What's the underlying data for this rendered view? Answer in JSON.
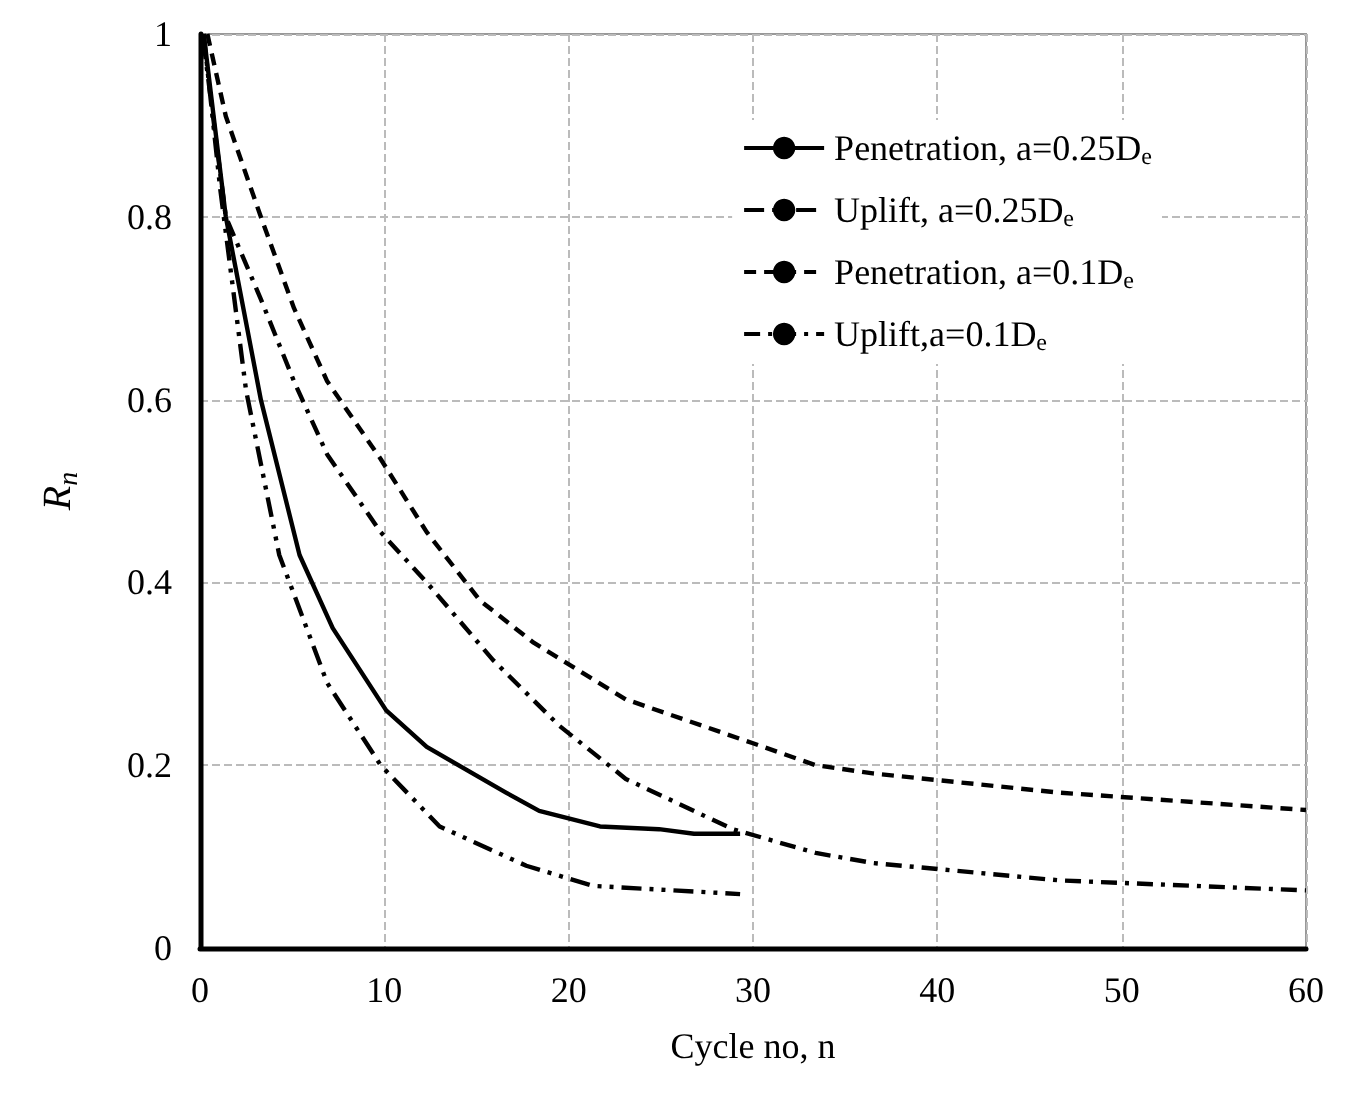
{
  "chart_data": {
    "type": "line",
    "xlabel": "Cycle no, n",
    "ylabel": "R$_{n}$",
    "xlim": [
      0,
      60
    ],
    "xticks": [
      0,
      10,
      20,
      30,
      40,
      50,
      60
    ],
    "ylim": [
      0,
      1
    ],
    "yticks": [
      0,
      0.2,
      0.4,
      0.6,
      0.8,
      1
    ],
    "grid": true,
    "legend": "top right",
    "marker": "none",
    "series": [
      {
        "name": "Penetration, a=0.25D$_{e}$",
        "color": "#000000",
        "line_style": "solid",
        "x": [
          0.2,
          1.4,
          3.3,
          5.4,
          7.2,
          10.1,
          12.3,
          16.6,
          18.4,
          21.7,
          24.9,
          26.8,
          29.3
        ],
        "values": [
          1,
          0.8,
          0.6,
          0.43,
          0.35,
          0.26,
          0.22,
          0.17,
          0.15,
          0.133,
          0.13,
          0.125,
          0.125
        ]
      },
      {
        "name": "Uplift, a=0.25D$_{e}$",
        "color": "#000000",
        "line_style": "dashdotdot",
        "x": [
          0.2,
          1.1,
          2.5,
          4.3,
          6.9,
          9.8,
          13,
          17.7,
          21.3,
          29.3
        ],
        "values": [
          1,
          0.83,
          0.61,
          0.43,
          0.29,
          0.2,
          0.133,
          0.09,
          0.068,
          0.059
        ]
      },
      {
        "name": "Penetration, a=0.1D$_{e}$",
        "color": "#000000",
        "line_style": "dashed",
        "x": [
          0.4,
          1.4,
          3.3,
          5.1,
          6.9,
          9.8,
          12.3,
          15.2,
          18.1,
          23.1,
          30,
          33.4,
          36.5,
          46.6,
          60
        ],
        "values": [
          1,
          0.91,
          0.8,
          0.7,
          0.62,
          0.535,
          0.455,
          0.38,
          0.334,
          0.272,
          0.224,
          0.2,
          0.191,
          0.17,
          0.151
        ]
      },
      {
        "name": "Uplift,a=0.1D$_{e}$",
        "color": "#000000",
        "line_style": "dashdot",
        "x": [
          0.2,
          1.4,
          3.3,
          5.1,
          6.9,
          9.8,
          12.3,
          15.9,
          19.5,
          23.1,
          28.9,
          33.4,
          36.5,
          46.6,
          60
        ],
        "values": [
          0.99,
          0.8,
          0.71,
          0.62,
          0.54,
          0.455,
          0.4,
          0.315,
          0.243,
          0.185,
          0.13,
          0.104,
          0.093,
          0.074,
          0.063
        ]
      }
    ]
  }
}
